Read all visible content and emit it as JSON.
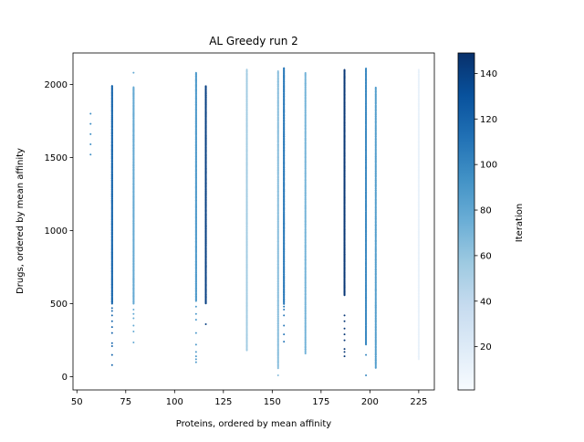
{
  "chart_data": {
    "type": "scatter",
    "title": "AL Greedy run 2",
    "xlabel": "Proteins, ordered by mean affinity",
    "ylabel": "Drugs, ordered by mean affinity",
    "xlim": [
      48,
      233
    ],
    "ylim": [
      -90,
      2215
    ],
    "xticks": [
      50,
      75,
      100,
      125,
      150,
      175,
      200,
      225
    ],
    "yticks": [
      0,
      500,
      1000,
      1500,
      2000
    ],
    "grid": false,
    "colormap": "Blues",
    "colorbar": {
      "label": "Iteration",
      "range": [
        1,
        149
      ],
      "ticks": [
        20,
        40,
        60,
        80,
        100,
        120,
        140
      ]
    },
    "marker_size": 1,
    "columns": [
      {
        "x": 57,
        "iteration": 95,
        "y_min": 1520,
        "y_max": 1800,
        "dense": false,
        "count": 5
      },
      {
        "x": 68,
        "iteration": 118,
        "y_min": 500,
        "y_max": 1990,
        "dense": true,
        "count": 520,
        "extra_y": [
          80,
          150,
          210,
          230,
          300,
          340,
          380,
          420,
          450,
          470
        ]
      },
      {
        "x": 79,
        "iteration": 78,
        "y_min": 500,
        "y_max": 1980,
        "dense": true,
        "count": 440,
        "extra_y": [
          235,
          310,
          350,
          400,
          430,
          460,
          2080
        ]
      },
      {
        "x": 111,
        "iteration": 88,
        "y_min": 520,
        "y_max": 2080,
        "dense": true,
        "count": 460,
        "extra_y": [
          100,
          120,
          140,
          170,
          220,
          300,
          390,
          430,
          480
        ]
      },
      {
        "x": 116,
        "iteration": 140,
        "y_min": 500,
        "y_max": 1990,
        "dense": true,
        "count": 460,
        "extra_y": [
          360
        ]
      },
      {
        "x": 137,
        "iteration": 55,
        "y_min": 180,
        "y_max": 2100,
        "dense": true,
        "count": 380
      },
      {
        "x": 153,
        "iteration": 65,
        "y_min": 60,
        "y_max": 2090,
        "dense": true,
        "count": 420,
        "extra_y": [
          10
        ]
      },
      {
        "x": 156,
        "iteration": 108,
        "y_min": 500,
        "y_max": 2110,
        "dense": true,
        "count": 440,
        "extra_y": [
          240,
          290,
          350,
          420,
          460,
          480
        ]
      },
      {
        "x": 167,
        "iteration": 72,
        "y_min": 160,
        "y_max": 2080,
        "dense": true,
        "count": 380
      },
      {
        "x": 187,
        "iteration": 145,
        "y_min": 560,
        "y_max": 2100,
        "dense": true,
        "count": 460,
        "extra_y": [
          140,
          170,
          190,
          250,
          290,
          330,
          380,
          420
        ]
      },
      {
        "x": 198,
        "iteration": 100,
        "y_min": 220,
        "y_max": 2110,
        "dense": true,
        "count": 440,
        "extra_y": [
          10,
          150
        ]
      },
      {
        "x": 203,
        "iteration": 85,
        "y_min": 60,
        "y_max": 1980,
        "dense": true,
        "count": 420
      },
      {
        "x": 225,
        "iteration": 12,
        "y_min": 120,
        "y_max": 2100,
        "dense": true,
        "count": 360
      }
    ]
  }
}
